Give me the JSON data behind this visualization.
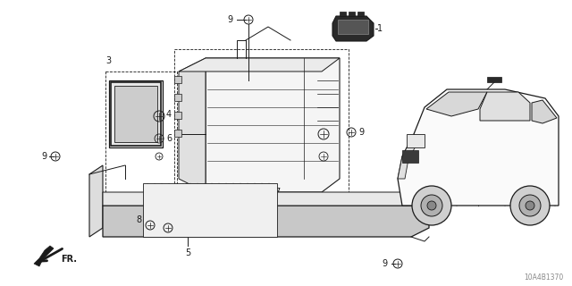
{
  "bg_color": "#ffffff",
  "diagram_id": "10A4B1370",
  "fig_width": 6.4,
  "fig_height": 3.2,
  "dpi": 100,
  "lc": "#1a1a1a",
  "watermark": "10A4B1370"
}
